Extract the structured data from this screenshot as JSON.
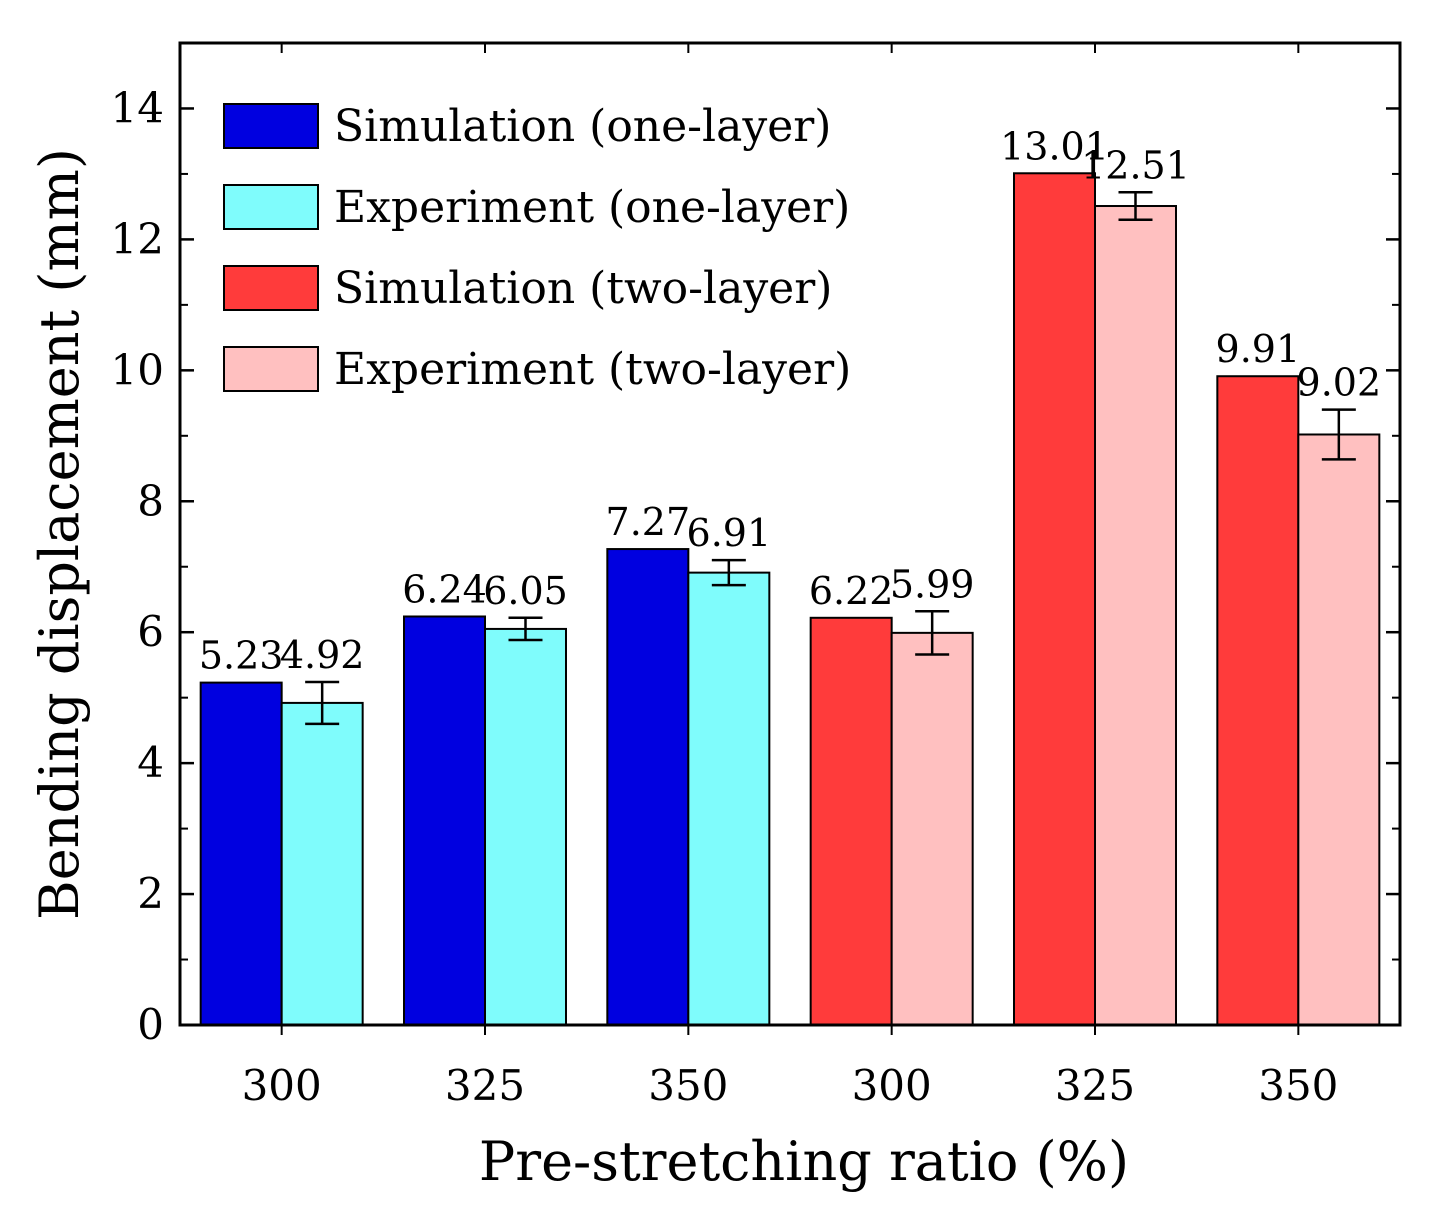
{
  "chart_data": {
    "type": "bar",
    "title": "",
    "xlabel": "Pre-stretching ratio (%)",
    "ylabel": "Bending displacement (mm)",
    "ylim": [
      0,
      15
    ],
    "yticks": [
      "0",
      "2",
      "4",
      "6",
      "8",
      "10",
      "12",
      "14"
    ],
    "categories": [
      "300",
      "325",
      "350",
      "300",
      "325",
      "350"
    ],
    "groups": [
      {
        "category": "300",
        "bars": [
          {
            "series": "Simulation (one-layer)",
            "value": 5.23,
            "label": "5.23",
            "color": "#0000e0"
          },
          {
            "series": "Experiment (one-layer)",
            "value": 4.92,
            "label": "4.92",
            "color": "#7ffcfc",
            "error": 0.32
          }
        ]
      },
      {
        "category": "325",
        "bars": [
          {
            "series": "Simulation (one-layer)",
            "value": 6.24,
            "label": "6.24",
            "color": "#0000e0"
          },
          {
            "series": "Experiment (one-layer)",
            "value": 6.05,
            "label": "6.05",
            "color": "#7ffcfc",
            "error": 0.17
          }
        ]
      },
      {
        "category": "350",
        "bars": [
          {
            "series": "Simulation (one-layer)",
            "value": 7.27,
            "label": "7.27",
            "color": "#0000e0"
          },
          {
            "series": "Experiment (one-layer)",
            "value": 6.91,
            "label": "6.91",
            "color": "#7ffcfc",
            "error": 0.19
          }
        ]
      },
      {
        "category": "300",
        "bars": [
          {
            "series": "Simulation (two-layer)",
            "value": 6.22,
            "label": "6.22",
            "color": "#ff3b3b"
          },
          {
            "series": "Experiment (two-layer)",
            "value": 5.99,
            "label": "5.99",
            "color": "#ffc0c0",
            "error": 0.33
          }
        ]
      },
      {
        "category": "325",
        "bars": [
          {
            "series": "Simulation (two-layer)",
            "value": 13.01,
            "label": "13.01",
            "color": "#ff3b3b"
          },
          {
            "series": "Experiment (two-layer)",
            "value": 12.51,
            "label": "12.51",
            "color": "#ffc0c0",
            "error": 0.21
          }
        ]
      },
      {
        "category": "350",
        "bars": [
          {
            "series": "Simulation (two-layer)",
            "value": 9.91,
            "label": "9.91",
            "color": "#ff3b3b"
          },
          {
            "series": "Experiment (two-layer)",
            "value": 9.02,
            "label": "9.02",
            "color": "#ffc0c0",
            "error": 0.38
          }
        ]
      }
    ],
    "legend": {
      "placement": "top-left",
      "entries": [
        {
          "label": "Simulation (one-layer)",
          "color": "#0000e0"
        },
        {
          "label": "Experiment (one-layer)",
          "color": "#7ffcfc"
        },
        {
          "label": "Simulation (two-layer)",
          "color": "#ff3b3b"
        },
        {
          "label": "Experiment (two-layer)",
          "color": "#ffc0c0"
        }
      ]
    },
    "grid": false
  }
}
